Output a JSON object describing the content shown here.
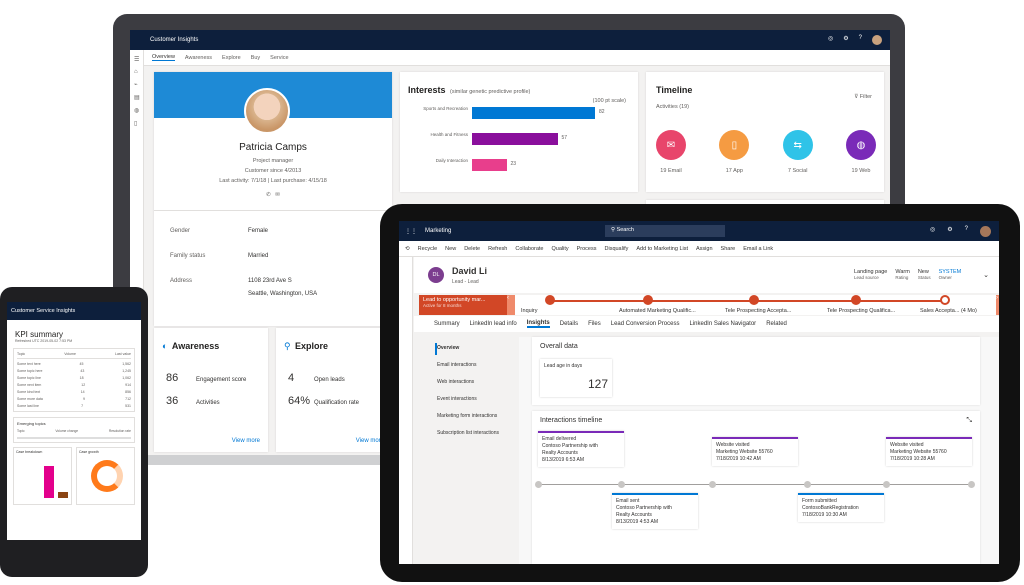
{
  "laptop": {
    "app_title": "Customer Insights",
    "nav": [
      "Overview",
      "Awareness",
      "Explore",
      "Buy",
      "Service"
    ],
    "profile": {
      "name": "Patricia Camps",
      "role": "Project manager",
      "since": "Customer since 4/2013",
      "activity": "Last activity: 7/1/18  |  Last purchase: 4/15/18",
      "fields": [
        {
          "label": "Gender",
          "value": "Female"
        },
        {
          "label": "Family status",
          "value": "Married"
        },
        {
          "label": "Address",
          "value": "1108 23rd Ave S"
        },
        {
          "label": "",
          "value": "Seattle, Washington, USA"
        }
      ]
    },
    "interests": {
      "title": "Interests",
      "subtitle": "(similar genetic predictive profile)",
      "scale": "(100 pt scale)",
      "bars": [
        {
          "label": "Sports and Recreation",
          "value": 82,
          "color": "#0078d4"
        },
        {
          "label": "Health and Fitness",
          "value": 57,
          "color": "#8a0f9c"
        },
        {
          "label": "Daily Interaction",
          "value": 23,
          "color": "#e83e8c"
        }
      ]
    },
    "timeline": {
      "title": "Timeline",
      "activities": "Activities",
      "count": "(19)",
      "filter": "Filter",
      "items": [
        {
          "label": "19 Email",
          "color": "#e8456b",
          "icon": "mail-icon"
        },
        {
          "label": "17 App",
          "color": "#f59b42",
          "icon": "phone-icon"
        },
        {
          "label": "7 Social",
          "color": "#2fc3e8",
          "icon": "share-icon"
        },
        {
          "label": "19 Web",
          "color": "#7a2ab8",
          "icon": "globe-icon"
        }
      ],
      "more": "Navigate"
    },
    "awareness": {
      "title": "Awareness",
      "rows": [
        {
          "value": "86",
          "label": "Engagement score"
        },
        {
          "value": "36",
          "label": "Activities"
        }
      ],
      "link": "View more"
    },
    "explore": {
      "title": "Explore",
      "rows": [
        {
          "value": "4",
          "label": "Open leads"
        },
        {
          "value": "64%",
          "label": "Qualification rate"
        }
      ],
      "link": "View more"
    }
  },
  "phone": {
    "app_title": "Customer Service Insights",
    "kpi_title": "KPI summary",
    "kpi_sub": "Refreshed UTC 2019-05-02 7:53 PM",
    "cols": [
      "Topic",
      "Volume",
      "Last value"
    ],
    "rows": [
      [
        "Some text here",
        "45",
        "1,562"
      ],
      [
        "Some topic here",
        "43",
        "1,245"
      ],
      [
        "Some topic line",
        "18",
        "1,062"
      ],
      [
        "Some next item",
        "12",
        "914"
      ],
      [
        "Some kind text",
        "14",
        "856"
      ],
      [
        "Some more data",
        "9",
        "712"
      ],
      [
        "Some last line",
        "7",
        "531"
      ]
    ],
    "emerging": "Emerging topics",
    "emerging_cols": [
      "Topic",
      "Volume change",
      "Resolution rate"
    ],
    "case_breakdown": "Case breakdown",
    "case_growth": "Case growth"
  },
  "tablet": {
    "app_title": "Marketing",
    "search": "Search",
    "commands": [
      "Recycle",
      "New",
      "Delete",
      "Refresh",
      "Collaborate",
      "Quality",
      "Process",
      "Disqualify",
      "Add to Marketing List",
      "Assign",
      "Share",
      "Email a Link"
    ],
    "lead": {
      "initials": "DL",
      "name": "David Li",
      "type": "Lead - Lead",
      "meta": [
        {
          "v": "Landing page",
          "l": "Lead source"
        },
        {
          "v": "Warm",
          "l": "Rating"
        },
        {
          "v": "New",
          "l": "Status"
        },
        {
          "v": "SYSTEM",
          "l": "Owner"
        }
      ]
    },
    "process": {
      "active": "Lead to opportunity mar...",
      "active_sub": "Active for 8 months",
      "stages": [
        "Inquiry",
        "Automated Marketing Qualific...",
        "Tele Prospecting Accepta...",
        "Tele Prospecting Qualifica...",
        "Sales Accepta... (4 Mo)"
      ]
    },
    "tabs": [
      "Summary",
      "LinkedIn lead info",
      "Insights",
      "Details",
      "Files",
      "Lead Conversion Process",
      "LinkedIn Sales Navigator",
      "Related"
    ],
    "side": [
      "Overview",
      "Email interactions",
      "Web interactions",
      "Event interactions",
      "Marketing form interactions",
      "Subscription list interactions"
    ],
    "overall": {
      "title": "Overall data",
      "label": "Lead age in days",
      "value": "127"
    },
    "timeline": {
      "title": "Interactions timeline",
      "events": [
        {
          "t": "Email delivered",
          "a": "Contoso Partnership with",
          "b": "Realty Accounts",
          "d": "8/13/2019 6:53 AM"
        },
        {
          "t": "Email sent",
          "a": "Contoso Partnership with",
          "b": "Realty Accounts",
          "d": "8/13/2019 4:53 AM"
        },
        {
          "t": "Website visited",
          "a": "Marketing Website 55760",
          "b": "",
          "d": "7/18/2019 10:42 AM"
        },
        {
          "t": "Form submitted",
          "a": "ContosoBankRegistration",
          "b": "",
          "d": "7/18/2019 10:30 AM"
        },
        {
          "t": "Website visited",
          "a": "Marketing Website 55760",
          "b": "",
          "d": "7/18/2019 10:28 AM"
        }
      ]
    }
  }
}
